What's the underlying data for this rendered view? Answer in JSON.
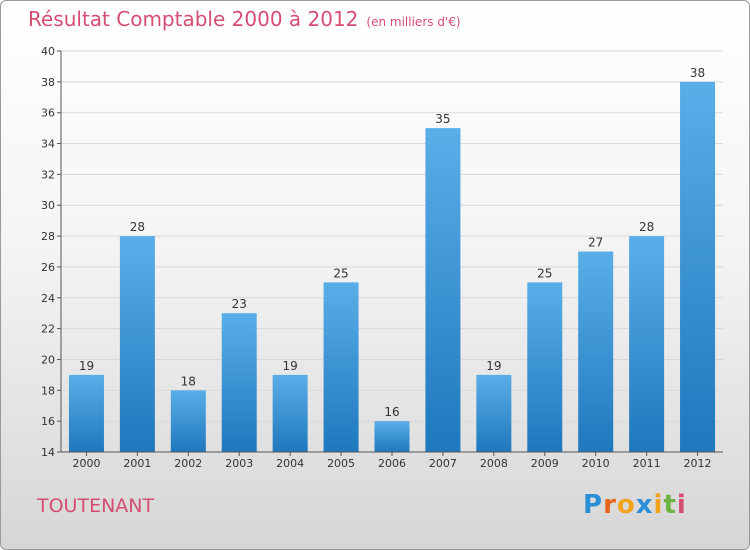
{
  "header": {
    "title": "Résultat Comptable 2000 à 2012",
    "subtitle": "(en milliers d'€)"
  },
  "footer": {
    "city": "TOUTENANT",
    "logo_letters": [
      "P",
      "r",
      "o",
      "x",
      "i",
      "t",
      "i"
    ],
    "logo_colors": [
      "#2a8fd6",
      "#e8641b",
      "#f2a21b",
      "#2a8fd6",
      "#f2a21b",
      "#6cb33f",
      "#d64d72"
    ]
  },
  "colors": {
    "bar_light": "#5aaee8",
    "bar_dark": "#1f78bd",
    "axis": "#555555",
    "grid": "#d9d9d9"
  },
  "chart_data": {
    "type": "bar",
    "title": "Résultat Comptable 2000 à 2012",
    "subtitle": "(en milliers d'€)",
    "categories": [
      "2000",
      "2001",
      "2002",
      "2003",
      "2004",
      "2005",
      "2006",
      "2007",
      "2008",
      "2009",
      "2010",
      "2011",
      "2012"
    ],
    "values": [
      19,
      28,
      18,
      23,
      19,
      25,
      16,
      35,
      19,
      25,
      27,
      28,
      38
    ],
    "ylim": [
      14,
      40
    ],
    "yticks": [
      14,
      16,
      18,
      20,
      22,
      24,
      26,
      28,
      30,
      32,
      34,
      36,
      38,
      40
    ],
    "xlabel": "",
    "ylabel": "",
    "grid": true
  }
}
